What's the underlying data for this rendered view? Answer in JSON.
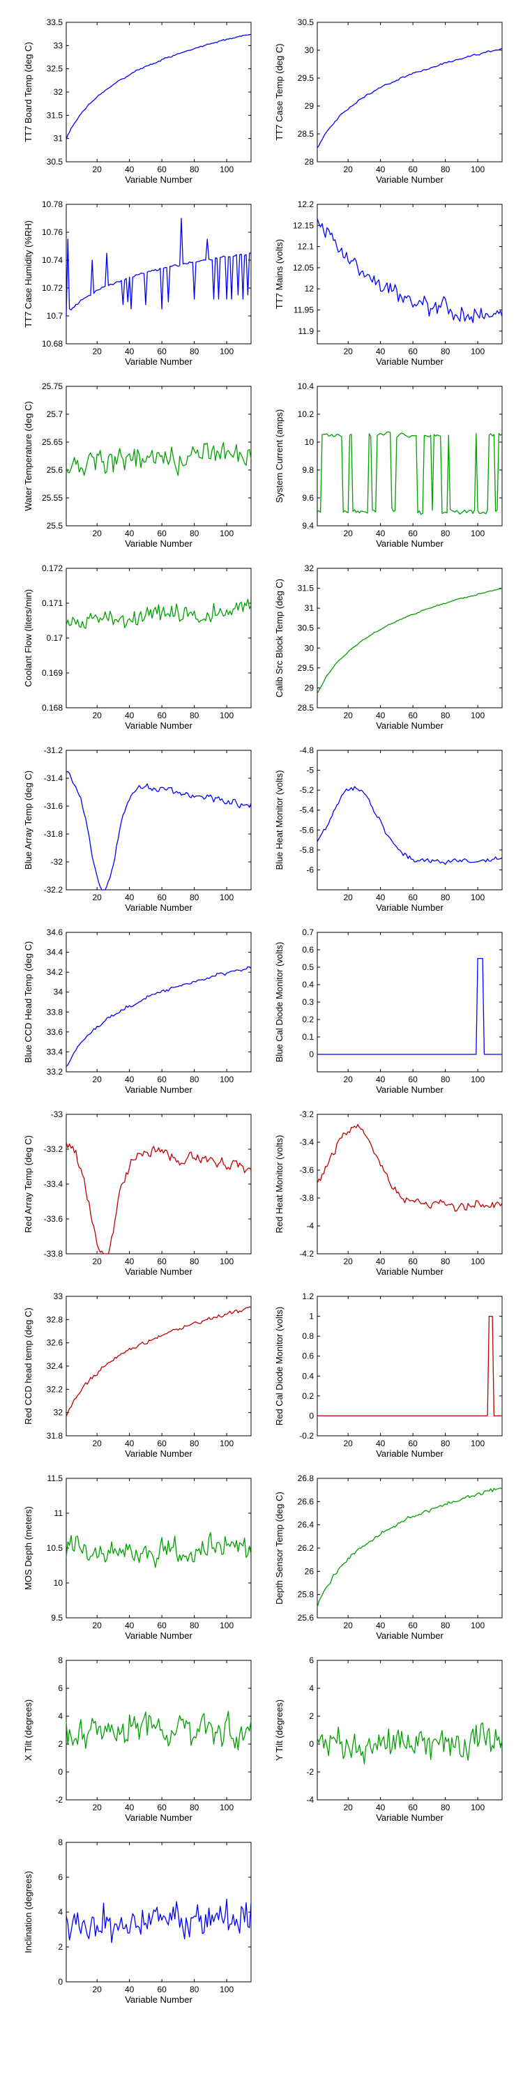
{
  "colors": {
    "blue": "#0000ff",
    "green": "#00a000",
    "red": "#c00000"
  },
  "chart_data": [
    {
      "type": "line",
      "xlabel": "Variable Number",
      "ylabel": "TT7 Board Temp (deg C)",
      "ylim": [
        30.5,
        33.5
      ],
      "yticks": [
        "30.5",
        "31",
        "31.5",
        "32",
        "32.5",
        "33",
        "33.5"
      ],
      "xlim": [
        1,
        115
      ],
      "xticks": [
        "20",
        "40",
        "60",
        "80",
        "100"
      ],
      "color": "blue",
      "shape": "rise_log",
      "y0": 31.0,
      "y1": 33.25,
      "noise": 0.02
    },
    {
      "type": "line",
      "xlabel": "Variable Number",
      "ylabel": "TT7 Case Temp (deg C)",
      "ylim": [
        28,
        30.5
      ],
      "yticks": [
        "28",
        "28.5",
        "29",
        "29.5",
        "30",
        "30.5"
      ],
      "xlim": [
        1,
        115
      ],
      "xticks": [
        "20",
        "40",
        "60",
        "80",
        "100"
      ],
      "color": "blue",
      "shape": "rise_log",
      "y0": 28.25,
      "y1": 30.02,
      "noise": 0.02
    },
    {
      "type": "line",
      "xlabel": "Variable Number",
      "ylabel": "TT7 Case Humidity (%RH)",
      "ylim": [
        10.68,
        10.78
      ],
      "yticks": [
        "10.68",
        "10.7",
        "10.72",
        "10.74",
        "10.76",
        "10.78"
      ],
      "xlim": [
        1,
        115
      ],
      "xticks": [
        "20",
        "40",
        "60",
        "80",
        "100"
      ],
      "color": "blue",
      "shape": "rise_log",
      "y0": 10.7,
      "y1": 10.745,
      "noise": 0.001,
      "spikes": [
        {
          "x": 2,
          "v": 10.755
        },
        {
          "x": 3,
          "v": 10.705
        },
        {
          "x": 17,
          "v": 10.74
        },
        {
          "x": 26,
          "v": 10.745
        },
        {
          "x": 36,
          "v": 10.708
        },
        {
          "x": 39,
          "v": 10.71
        },
        {
          "x": 41,
          "v": 10.705
        },
        {
          "x": 50,
          "v": 10.708
        },
        {
          "x": 60,
          "v": 10.705
        },
        {
          "x": 64,
          "v": 10.71
        },
        {
          "x": 72,
          "v": 10.77
        },
        {
          "x": 80,
          "v": 10.712
        },
        {
          "x": 88,
          "v": 10.755
        },
        {
          "x": 92,
          "v": 10.712
        },
        {
          "x": 95,
          "v": 10.712
        },
        {
          "x": 100,
          "v": 10.712
        },
        {
          "x": 103,
          "v": 10.712
        },
        {
          "x": 107,
          "v": 10.715
        },
        {
          "x": 110,
          "v": 10.712
        },
        {
          "x": 113,
          "v": 10.715
        }
      ]
    },
    {
      "type": "line",
      "xlabel": "Variable Number",
      "ylabel": "TT7 Mains  (volts)",
      "ylim": [
        11.87,
        12.2
      ],
      "yticks": [
        "11.9",
        "11.95",
        "12",
        "12.05",
        "12.1",
        "12.15",
        "12.2"
      ],
      "xlim": [
        1,
        115
      ],
      "xticks": [
        "20",
        "40",
        "60",
        "80",
        "100"
      ],
      "color": "blue",
      "shape": "decay",
      "y0": 12.17,
      "y1": 11.92,
      "noise": 0.025
    },
    {
      "type": "line",
      "xlabel": "Variable Number",
      "ylabel": "Water Temperature (deg C)",
      "ylim": [
        25.5,
        25.75
      ],
      "yticks": [
        "25.5",
        "25.55",
        "25.6",
        "25.65",
        "25.7",
        "25.75"
      ],
      "xlim": [
        1,
        115
      ],
      "xticks": [
        "20",
        "40",
        "60",
        "80",
        "100"
      ],
      "color": "green",
      "shape": "flat",
      "y0": 25.61,
      "y1": 25.63,
      "noise": 0.025
    },
    {
      "type": "line",
      "xlabel": "Variable Number",
      "ylabel": "System Current (amps)",
      "ylim": [
        9.4,
        10.4
      ],
      "yticks": [
        "9.4",
        "9.6",
        "9.8",
        "10",
        "10.2",
        "10.4"
      ],
      "xlim": [
        1,
        115
      ],
      "xticks": [
        "20",
        "40",
        "60",
        "80",
        "100"
      ],
      "color": "green",
      "shape": "step",
      "y0": 9.5,
      "y1": 10.05,
      "noise": 0.02
    },
    {
      "type": "line",
      "xlabel": "Variable Number",
      "ylabel": "Coolant Flow (liters/min)",
      "ylim": [
        0.168,
        0.172
      ],
      "yticks": [
        "0.168",
        "0.169",
        "0.17",
        "0.171",
        "0.172"
      ],
      "xlim": [
        1,
        115
      ],
      "xticks": [
        "20",
        "40",
        "60",
        "80",
        "100"
      ],
      "color": "green",
      "shape": "flat",
      "y0": 0.1705,
      "y1": 0.1708,
      "noise": 0.0003
    },
    {
      "type": "line",
      "xlabel": "Variable Number",
      "ylabel": "Calib Src Block Temp (deg C)",
      "ylim": [
        28.5,
        32
      ],
      "yticks": [
        "28.5",
        "29",
        "29.5",
        "30",
        "30.5",
        "31",
        "31.5",
        "32"
      ],
      "xlim": [
        1,
        115
      ],
      "xticks": [
        "20",
        "40",
        "60",
        "80",
        "100"
      ],
      "color": "green",
      "shape": "rise_log",
      "y0": 28.85,
      "y1": 31.5,
      "noise": 0.02
    },
    {
      "type": "line",
      "xlabel": "Variable Number",
      "ylabel": "Blue Array Temp (deg C)",
      "ylim": [
        -32.2,
        -31.2
      ],
      "yticks": [
        "-32.2",
        "-32",
        "-31.8",
        "-31.6",
        "-31.4",
        "-31.2"
      ],
      "xlim": [
        1,
        115
      ],
      "xticks": [
        "20",
        "40",
        "60",
        "80",
        "100"
      ],
      "color": "blue",
      "shape": "dip",
      "y0": -31.35,
      "y1": -31.6,
      "noise": 0.03
    },
    {
      "type": "line",
      "xlabel": "Variable Number",
      "ylabel": "Blue Heat Monitor (volts)",
      "ylim": [
        -6.2,
        -4.8
      ],
      "yticks": [
        "-6",
        "-5.8",
        "-5.6",
        "-5.4",
        "-5.2",
        "-5",
        "-4.8"
      ],
      "xlim": [
        1,
        115
      ],
      "xticks": [
        "20",
        "40",
        "60",
        "80",
        "100"
      ],
      "color": "blue",
      "shape": "hump",
      "y0": -5.95,
      "y1": -5.9,
      "noise": 0.03
    },
    {
      "type": "line",
      "xlabel": "Variable Number",
      "ylabel": "Blue CCD Head Temp (deg C)",
      "ylim": [
        33.2,
        34.6
      ],
      "yticks": [
        "33.2",
        "33.4",
        "33.6",
        "33.8",
        "34",
        "34.2",
        "34.4",
        "34.6"
      ],
      "xlim": [
        1,
        115
      ],
      "xticks": [
        "20",
        "40",
        "60",
        "80",
        "100"
      ],
      "color": "blue",
      "shape": "rise_log",
      "y0": 33.25,
      "y1": 34.25,
      "noise": 0.02
    },
    {
      "type": "line",
      "xlabel": "Variable Number",
      "ylabel": "Blue Cal Diode Monitor (volts)",
      "ylim": [
        -0.1,
        0.7
      ],
      "yticks": [
        "0",
        "0.1",
        "0.2",
        "0.3",
        "0.4",
        "0.5",
        "0.6",
        "0.7"
      ],
      "xlim": [
        1,
        115
      ],
      "xticks": [
        "20",
        "40",
        "60",
        "80",
        "100"
      ],
      "color": "blue",
      "shape": "pulse",
      "y0": 0,
      "y1": 0.55,
      "noise": 0,
      "pulse": [
        100,
        103
      ]
    },
    {
      "type": "line",
      "xlabel": "Variable Number",
      "ylabel": "Red Array Temp (deg C)",
      "ylim": [
        -33.8,
        -33
      ],
      "yticks": [
        "-33.8",
        "-33.6",
        "-33.4",
        "-33.2",
        "-33"
      ],
      "xlim": [
        1,
        115
      ],
      "xticks": [
        "20",
        "40",
        "60",
        "80",
        "100"
      ],
      "color": "red",
      "shape": "dip",
      "y0": -33.15,
      "y1": -33.3,
      "noise": 0.04
    },
    {
      "type": "line",
      "xlabel": "Variable Number",
      "ylabel": "Red Heat Monitor (volts)",
      "ylim": [
        -4.2,
        -3.2
      ],
      "yticks": [
        "-4.2",
        "-4",
        "-3.8",
        "-3.6",
        "-3.4",
        "-3.2"
      ],
      "xlim": [
        1,
        115
      ],
      "xticks": [
        "20",
        "40",
        "60",
        "80",
        "100"
      ],
      "color": "red",
      "shape": "hump",
      "y0": -3.85,
      "y1": -3.85,
      "noise": 0.04
    },
    {
      "type": "line",
      "xlabel": "Variable Number",
      "ylabel": "Red CCD head temp (deg C)",
      "ylim": [
        31.8,
        33
      ],
      "yticks": [
        "31.8",
        "32",
        "32.2",
        "32.4",
        "32.6",
        "32.8",
        "33"
      ],
      "xlim": [
        1,
        115
      ],
      "xticks": [
        "20",
        "40",
        "60",
        "80",
        "100"
      ],
      "color": "red",
      "shape": "rise_log",
      "y0": 31.97,
      "y1": 32.9,
      "noise": 0.02
    },
    {
      "type": "line",
      "xlabel": "Variable Number",
      "ylabel": "Red Cal Diode Monitor (volts)",
      "ylim": [
        -0.2,
        1.2
      ],
      "yticks": [
        "-0.2",
        "0",
        "0.2",
        "0.4",
        "0.6",
        "0.8",
        "1",
        "1.2"
      ],
      "xlim": [
        1,
        115
      ],
      "xticks": [
        "20",
        "40",
        "60",
        "80",
        "100"
      ],
      "color": "red",
      "shape": "pulse",
      "y0": 0,
      "y1": 1.0,
      "noise": 0,
      "pulse": [
        107,
        109
      ]
    },
    {
      "type": "line",
      "xlabel": "Variable Number",
      "ylabel": "MOS Depth  (meters)",
      "ylim": [
        9.5,
        11.5
      ],
      "yticks": [
        "9.5",
        "10",
        "10.5",
        "11",
        "11.5"
      ],
      "xlim": [
        1,
        115
      ],
      "xticks": [
        "20",
        "40",
        "60",
        "80",
        "100"
      ],
      "color": "green",
      "shape": "flat",
      "y0": 10.45,
      "y1": 10.5,
      "noise": 0.22
    },
    {
      "type": "line",
      "xlabel": "Variable Number",
      "ylabel": "Depth Sensor Temp (deg C)",
      "ylim": [
        25.6,
        26.8
      ],
      "yticks": [
        "25.6",
        "25.8",
        "26",
        "26.2",
        "26.4",
        "26.6",
        "26.8"
      ],
      "xlim": [
        1,
        115
      ],
      "xticks": [
        "20",
        "40",
        "60",
        "80",
        "100"
      ],
      "color": "green",
      "shape": "rise_log",
      "y0": 25.7,
      "y1": 26.72,
      "noise": 0.02
    },
    {
      "type": "line",
      "xlabel": "Variable Number",
      "ylabel": "X Tilt  (degrees)",
      "ylim": [
        -2,
        8
      ],
      "yticks": [
        "-2",
        "0",
        "2",
        "4",
        "6",
        "8"
      ],
      "xlim": [
        1,
        115
      ],
      "xticks": [
        "20",
        "40",
        "60",
        "80",
        "100"
      ],
      "color": "green",
      "shape": "flat",
      "y0": 3,
      "y1": 3.2,
      "noise": 1.4
    },
    {
      "type": "line",
      "xlabel": "Variable Number",
      "ylabel": "Y Tilt  (degrees)",
      "ylim": [
        -4,
        6
      ],
      "yticks": [
        "-4",
        "-2",
        "0",
        "2",
        "4",
        "6"
      ],
      "xlim": [
        1,
        115
      ],
      "xticks": [
        "20",
        "40",
        "60",
        "80",
        "100"
      ],
      "color": "green",
      "shape": "flat",
      "y0": 0,
      "y1": 0.3,
      "noise": 1.4
    },
    {
      "type": "line",
      "xlabel": "Variable Number",
      "ylabel": "Inclination  (degrees)",
      "ylim": [
        0,
        8
      ],
      "yticks": [
        "0",
        "2",
        "4",
        "6",
        "8"
      ],
      "xlim": [
        1,
        115
      ],
      "xticks": [
        "20",
        "40",
        "60",
        "80",
        "100"
      ],
      "color": "blue",
      "shape": "flat",
      "y0": 3.5,
      "y1": 3.7,
      "noise": 1.3
    }
  ]
}
